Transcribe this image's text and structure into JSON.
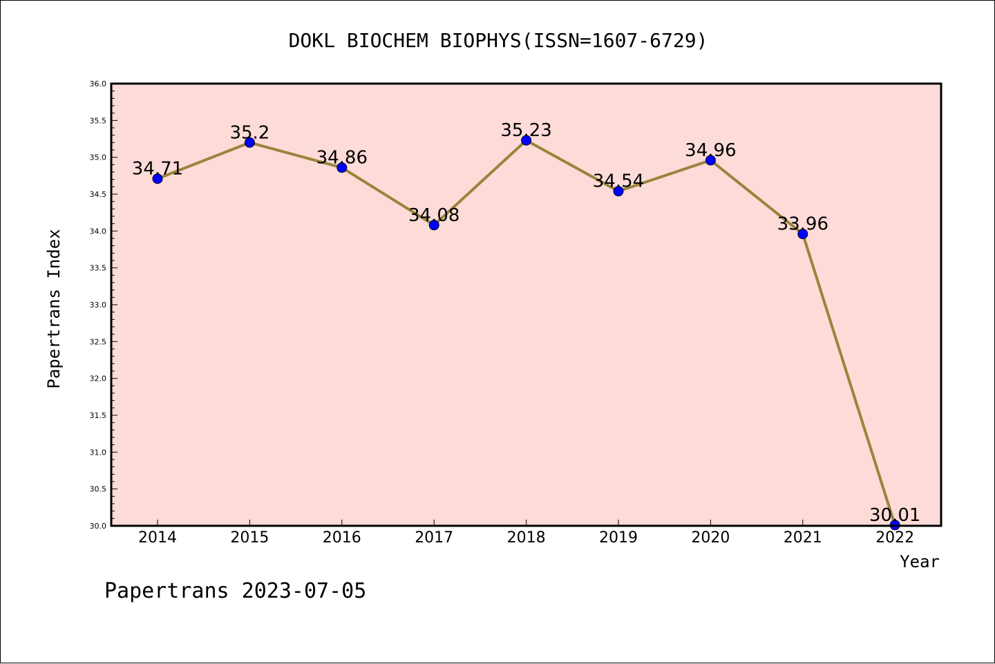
{
  "chart_data": {
    "type": "line",
    "title": "DOKL BIOCHEM BIOPHYS(ISSN=1607-6729)",
    "xlabel": "Year",
    "ylabel": "Papertrans Index",
    "categories": [
      "2014",
      "2015",
      "2016",
      "2017",
      "2018",
      "2019",
      "2020",
      "2021",
      "2022"
    ],
    "series": [
      {
        "values": [
          34.71,
          35.2,
          34.86,
          34.08,
          35.23,
          34.54,
          34.96,
          33.96,
          30.01
        ],
        "data_labels": [
          "34.71",
          "35.2",
          "34.86",
          "34.08",
          "35.23",
          "34.54",
          "34.96",
          "33.96",
          "30.01"
        ]
      }
    ],
    "ylim": [
      30.0,
      36.0
    ],
    "yticks": [
      "30.0",
      "30.5",
      "31.0",
      "31.5",
      "32.0",
      "32.5",
      "33.0",
      "33.5",
      "34.0",
      "34.5",
      "35.0",
      "35.5",
      "36.0"
    ],
    "grid": false,
    "legend": "none",
    "colors": {
      "plot_background": "#fddbd8",
      "line": "#9a843c",
      "marker": "#0000ff",
      "axis": "#000000"
    }
  },
  "footer": {
    "credit": "Papertrans 2023-07-05"
  }
}
